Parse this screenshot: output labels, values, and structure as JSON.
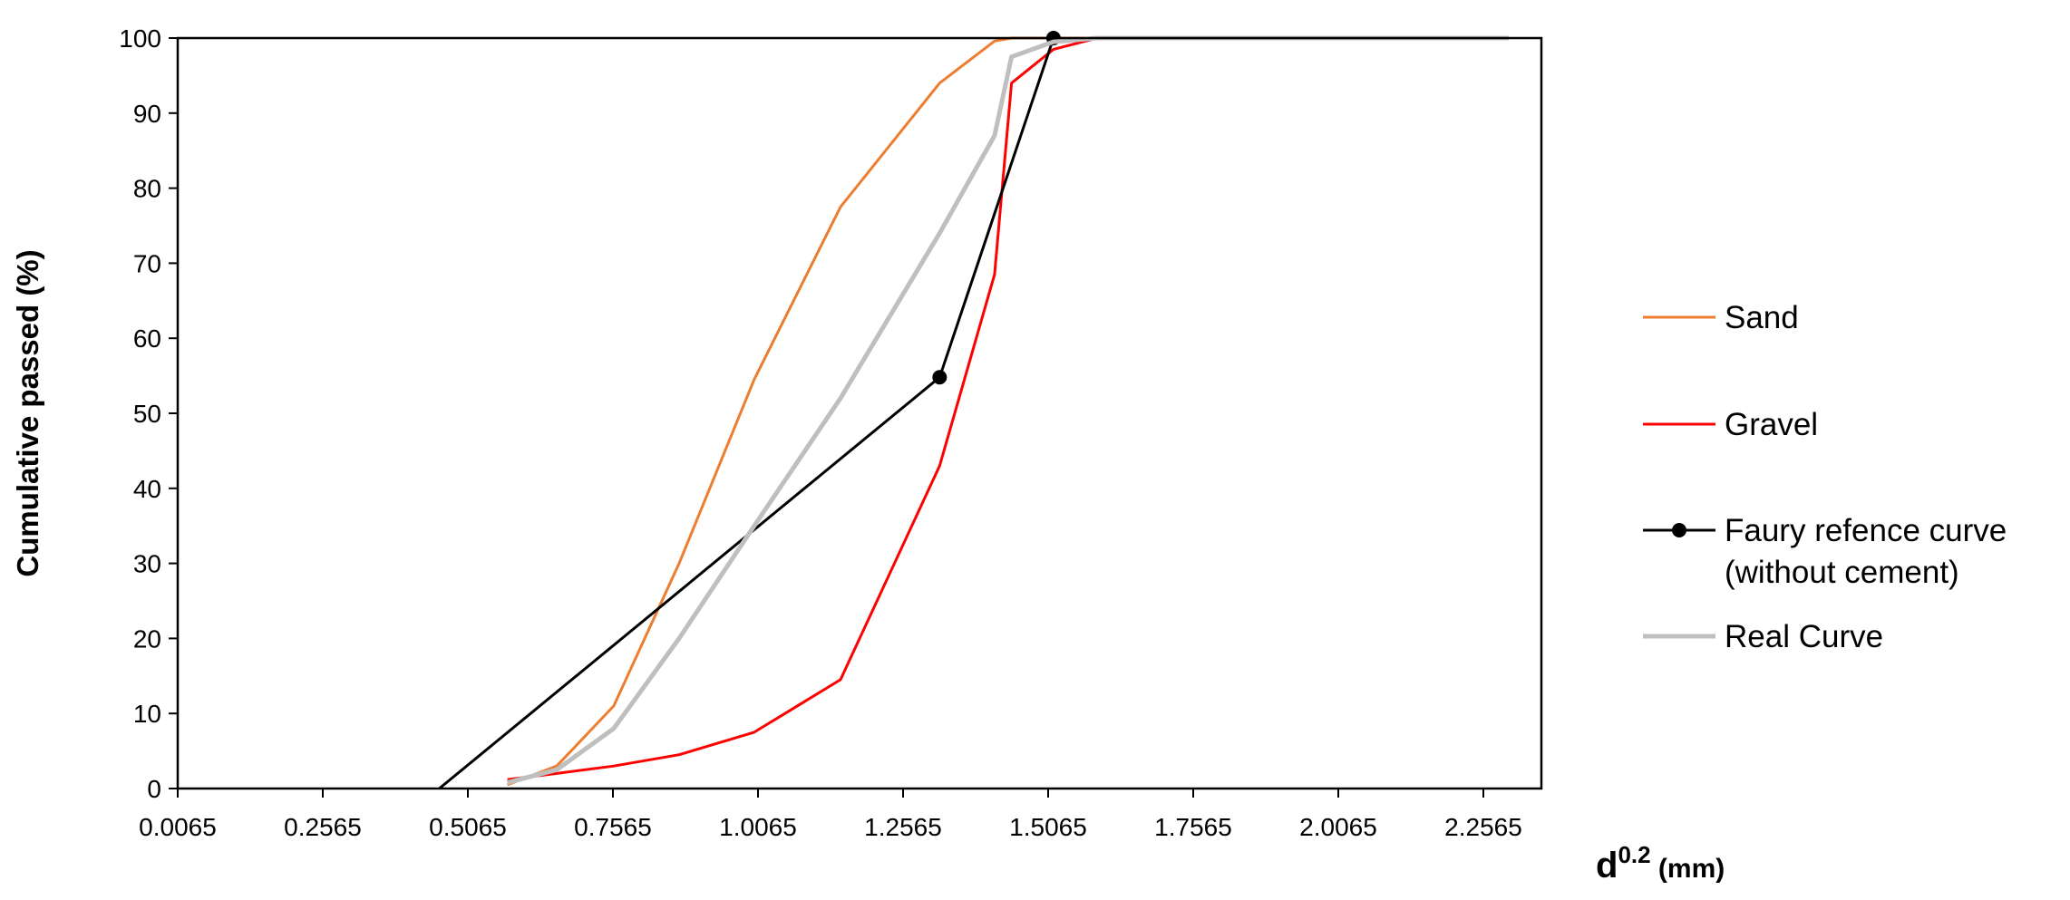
{
  "chart_data": {
    "type": "line",
    "xlabel": {
      "base": "d",
      "superscript": "0.2",
      "unit": " (mm)"
    },
    "ylabel": "Cumulative passed (%)",
    "xlim": [
      0.0065,
      2.3565
    ],
    "ylim": [
      0,
      100
    ],
    "x_ticks": [
      "0.0065",
      "0.2565",
      "0.5065",
      "0.7565",
      "1.0065",
      "1.2565",
      "1.5065",
      "1.7565",
      "2.0065",
      "2.2565"
    ],
    "y_ticks": [
      "0",
      "10",
      "20",
      "30",
      "40",
      "50",
      "60",
      "70",
      "80",
      "90",
      "100"
    ],
    "grid": false,
    "legend_position": "right",
    "series": [
      {
        "name": "Sand",
        "color": "#ED7D31",
        "marker": "none",
        "x": [
          0.5747,
          0.6597,
          0.7579,
          0.8706,
          1.0,
          1.1487,
          1.3195,
          1.4142,
          1.4434,
          1.5157,
          1.5911,
          2.3003
        ],
        "y": [
          0.5,
          3,
          11,
          30,
          54.5,
          77.5,
          94,
          99.6,
          100,
          100,
          100,
          100
        ]
      },
      {
        "name": "Gravel",
        "color": "#FF0000",
        "marker": "none",
        "x": [
          0.5747,
          0.6597,
          0.7579,
          0.8706,
          1.0,
          1.1487,
          1.3195,
          1.4142,
          1.4434,
          1.5157,
          1.5911,
          2.3003
        ],
        "y": [
          1.2,
          2,
          3,
          4.5,
          7.5,
          14.5,
          43,
          68.5,
          94,
          98.5,
          100,
          100
        ]
      },
      {
        "name": "Faury refence curve\n(without cement)",
        "color": "#000000",
        "marker": "circle",
        "x": [
          0.4573,
          1.3195,
          1.5157
        ],
        "y": [
          0,
          54.8,
          100
        ]
      },
      {
        "name": "Real Curve",
        "color": "#BFBFBF",
        "marker": "none",
        "x": [
          0.5747,
          0.6597,
          0.7579,
          0.8706,
          1.0,
          1.1487,
          1.3195,
          1.4142,
          1.4434,
          1.5157,
          1.5911,
          2.3003
        ],
        "y": [
          0.8,
          2.5,
          8,
          20,
          35,
          52,
          74,
          87,
          97.5,
          99.5,
          100,
          100
        ]
      }
    ]
  }
}
